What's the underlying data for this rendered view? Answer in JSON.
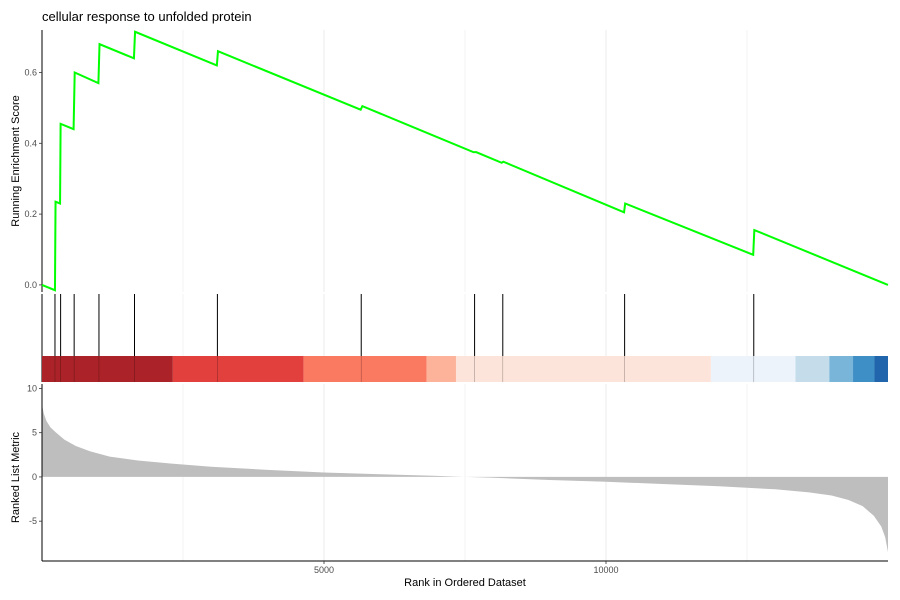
{
  "chart_data": {
    "type": "line",
    "title": "cellular response to unfolded protein",
    "xlabel": "Rank in Ordered Dataset",
    "x_range": [
      0,
      15000
    ],
    "x_ticks": [
      5000,
      10000
    ],
    "panels": {
      "running_es": {
        "ylabel": "Running Enrichment Score",
        "ylim": [
          -0.02,
          0.72
        ],
        "y_ticks": [
          0.0,
          0.2,
          0.4,
          0.6
        ],
        "y_tick_labels": [
          "0.0",
          "0.2",
          "0.4",
          "0.6"
        ],
        "series": [
          {
            "color": "#00ff00",
            "points": [
              [
                0,
                0.0
              ],
              [
                230,
                -0.015
              ],
              [
                240,
                0.235
              ],
              [
                320,
                0.23
              ],
              [
                330,
                0.455
              ],
              [
                560,
                0.44
              ],
              [
                580,
                0.6
              ],
              [
                1000,
                0.57
              ],
              [
                1020,
                0.68
              ],
              [
                1630,
                0.64
              ],
              [
                1650,
                0.715
              ],
              [
                3100,
                0.62
              ],
              [
                3120,
                0.66
              ],
              [
                5650,
                0.495
              ],
              [
                5680,
                0.505
              ],
              [
                7650,
                0.375
              ],
              [
                7700,
                0.375
              ],
              [
                8150,
                0.345
              ],
              [
                8180,
                0.348
              ],
              [
                10320,
                0.205
              ],
              [
                10340,
                0.23
              ],
              [
                12610,
                0.085
              ],
              [
                12630,
                0.155
              ],
              [
                15000,
                0.0
              ]
            ]
          }
        ]
      },
      "hits": {
        "positions": [
          230,
          330,
          570,
          1010,
          1640,
          3110,
          5660,
          7670,
          8170,
          10330,
          12620
        ]
      },
      "color_bar": {
        "segments": [
          {
            "start": 0,
            "end": 2320,
            "color": "#ab2328"
          },
          {
            "start": 2320,
            "end": 4640,
            "color": "#e2403d"
          },
          {
            "start": 4640,
            "end": 6820,
            "color": "#fa7961"
          },
          {
            "start": 6820,
            "end": 7340,
            "color": "#fcb39a"
          },
          {
            "start": 7340,
            "end": 11860,
            "color": "#fde4da"
          },
          {
            "start": 11860,
            "end": 13360,
            "color": "#ecf3fb"
          },
          {
            "start": 13360,
            "end": 13960,
            "color": "#c5dcea"
          },
          {
            "start": 13960,
            "end": 14380,
            "color": "#79b5d9"
          },
          {
            "start": 14380,
            "end": 14760,
            "color": "#3e8fc5"
          },
          {
            "start": 14760,
            "end": 15000,
            "color": "#2166ac"
          }
        ]
      },
      "ranked_metric": {
        "ylabel": "Ranked List Metric",
        "ylim": [
          -9.5,
          10.5
        ],
        "y_ticks": [
          10,
          5,
          0,
          -5
        ],
        "y_tick_labels": [
          "10",
          "5",
          "0",
          "-5"
        ],
        "fill_color": "#bebebe",
        "profile": [
          [
            0,
            8.2
          ],
          [
            30,
            7.2
          ],
          [
            80,
            6.3
          ],
          [
            150,
            5.6
          ],
          [
            250,
            5.0
          ],
          [
            400,
            4.2
          ],
          [
            600,
            3.5
          ],
          [
            850,
            2.9
          ],
          [
            1200,
            2.3
          ],
          [
            1700,
            1.85
          ],
          [
            2300,
            1.5
          ],
          [
            3000,
            1.15
          ],
          [
            4000,
            0.8
          ],
          [
            5000,
            0.5
          ],
          [
            6000,
            0.3
          ],
          [
            7000,
            0.12
          ],
          [
            7400,
            0.02
          ],
          [
            7500,
            0.0
          ],
          [
            8000,
            -0.1
          ],
          [
            9000,
            -0.35
          ],
          [
            10000,
            -0.55
          ],
          [
            11000,
            -0.8
          ],
          [
            12000,
            -1.05
          ],
          [
            13000,
            -1.4
          ],
          [
            13600,
            -1.75
          ],
          [
            14000,
            -2.1
          ],
          [
            14300,
            -2.6
          ],
          [
            14550,
            -3.3
          ],
          [
            14750,
            -4.4
          ],
          [
            14880,
            -5.6
          ],
          [
            14950,
            -6.8
          ],
          [
            15000,
            -8.5
          ]
        ]
      }
    }
  }
}
